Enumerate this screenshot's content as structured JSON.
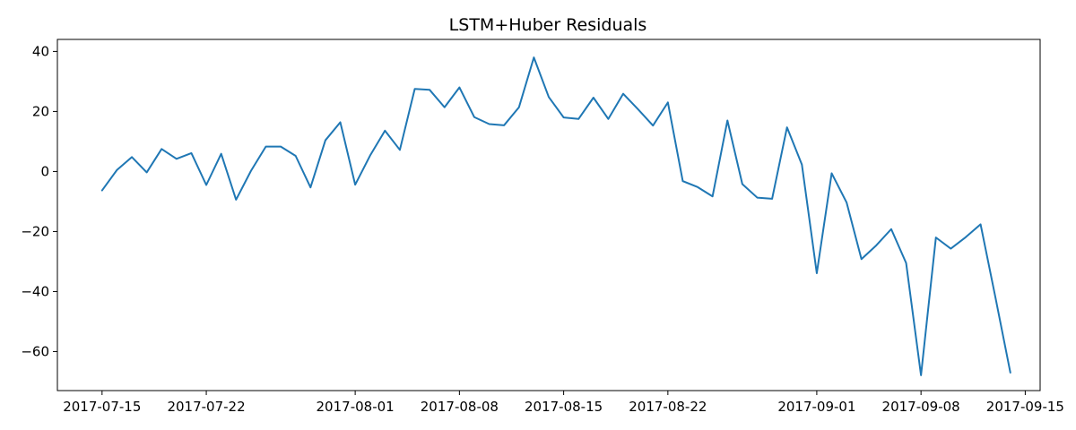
{
  "chart_data": {
    "type": "line",
    "title": "LSTM+Huber Residuals",
    "xlabel": "",
    "ylabel": "",
    "x_start": "2017-07-15",
    "x_step_days": 1,
    "xlim": [
      "2017-07-12",
      "2017-09-16"
    ],
    "ylim": [
      -73,
      44
    ],
    "grid": false,
    "legend": null,
    "series_color": "#1f77b4",
    "xticks": [
      {
        "date": "2017-07-15",
        "label": "2017-07-15"
      },
      {
        "date": "2017-07-22",
        "label": "2017-07-22"
      },
      {
        "date": "2017-08-01",
        "label": "2017-08-01"
      },
      {
        "date": "2017-08-08",
        "label": "2017-08-08"
      },
      {
        "date": "2017-08-15",
        "label": "2017-08-15"
      },
      {
        "date": "2017-08-22",
        "label": "2017-08-22"
      },
      {
        "date": "2017-09-01",
        "label": "2017-09-01"
      },
      {
        "date": "2017-09-08",
        "label": "2017-09-08"
      },
      {
        "date": "2017-09-15",
        "label": "2017-09-15"
      }
    ],
    "yticks": [
      {
        "value": 40,
        "label": "40"
      },
      {
        "value": 20,
        "label": "20"
      },
      {
        "value": 0,
        "label": "0"
      },
      {
        "value": -20,
        "label": "−20"
      },
      {
        "value": -40,
        "label": "−40"
      },
      {
        "value": -60,
        "label": "−60"
      }
    ],
    "series": [
      {
        "values": [
          -6.3,
          0.5,
          4.8,
          -0.3,
          7.5,
          4.2,
          6.1,
          -4.5,
          5.9,
          -9.4,
          0.2,
          8.3,
          8.3,
          5.2,
          -5.3,
          10.4,
          16.4,
          -4.4,
          5.3,
          13.6,
          7.2,
          27.5,
          27.2,
          21.4,
          28.0,
          18.1,
          15.8,
          15.4,
          21.4,
          38.0,
          24.8,
          18.0,
          17.5,
          24.6,
          17.5,
          25.9,
          20.7,
          15.3,
          23.0,
          -3.2,
          -5.2,
          -8.3,
          17.0,
          -4.2,
          -8.7,
          -9.1,
          14.7,
          2.3,
          -33.9,
          -0.6,
          -10.3,
          -29.2,
          -24.6,
          -19.2,
          -30.5,
          -67.9,
          -22.0,
          -25.7,
          -21.9,
          -17.6,
          -42.0,
          -67.0
        ]
      }
    ]
  }
}
